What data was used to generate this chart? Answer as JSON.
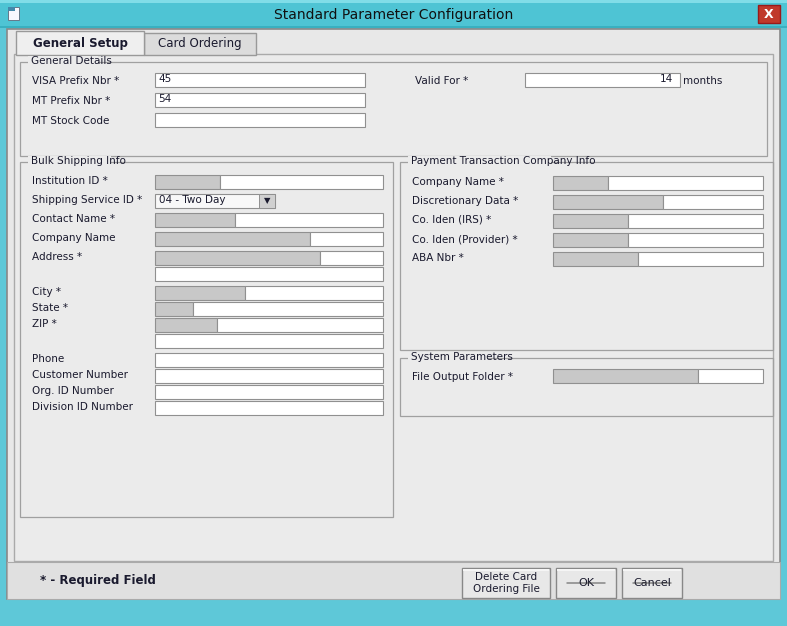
{
  "title": "Standard Parameter Configuration",
  "bg_outer": "#5ec8d8",
  "bg_window": "#f0f0f0",
  "bg_content": "#ebebeb",
  "tab1": "General Setup",
  "tab2": "Card Ordering",
  "general_details_label": "General Details",
  "bulk_shipping_label": "Bulk Shipping Info",
  "payment_label": "Payment Transaction Company Info",
  "system_label": "System Parameters",
  "required_note": "* - Required Field",
  "btn1": "Delete Card\nOrdering File",
  "btn2": "OK",
  "btn3": "Cancel",
  "field_white": "#ffffff",
  "field_gray": "#c8c8c8",
  "field_light_gray": "#d0d0d0",
  "bg_groupbox": "#ebebeb",
  "border_color": "#a0a0a0",
  "text_dark": "#1a1a2e",
  "bottom_bar": "#e0e0e0"
}
